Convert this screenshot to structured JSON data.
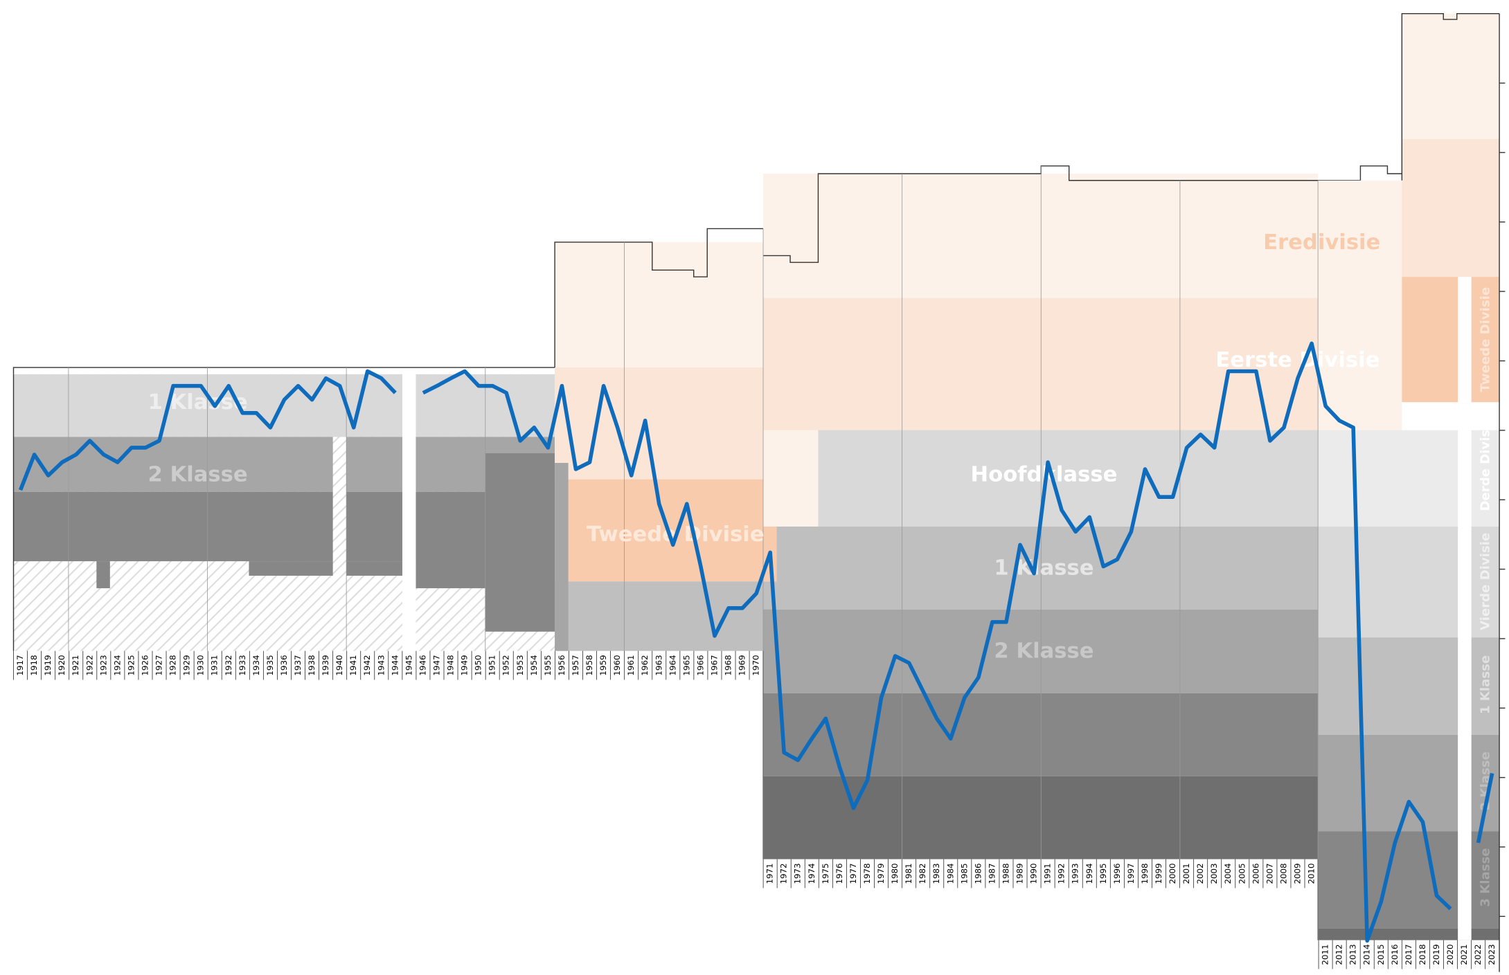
{
  "chart_data": {
    "type": "line",
    "color": "#0f6cbd",
    "invert": true,
    "x": [
      1917,
      1918,
      1919,
      1920,
      1921,
      1922,
      1923,
      1924,
      1925,
      1926,
      1927,
      1928,
      1929,
      1930,
      1931,
      1932,
      1933,
      1934,
      1935,
      1936,
      1937,
      1938,
      1939,
      1940,
      1941,
      1942,
      1943,
      1944,
      1945,
      1946,
      1947,
      1948,
      1949,
      1950,
      1951,
      1952,
      1953,
      1954,
      1955,
      1956,
      1957,
      1958,
      1959,
      1960,
      1961,
      1962,
      1963,
      1964,
      1965,
      1966,
      1967,
      1968,
      1969,
      1970,
      1971,
      1972,
      1973,
      1974,
      1975,
      1976,
      1977,
      1978,
      1979,
      1980,
      1981,
      1982,
      1983,
      1984,
      1985,
      1986,
      1987,
      1988,
      1989,
      1990,
      1991,
      1992,
      1993,
      1994,
      1995,
      1996,
      1997,
      1998,
      1999,
      2000,
      2001,
      2002,
      2003,
      2004,
      2005,
      2006,
      2007,
      2008,
      2009,
      2010,
      2011,
      2012,
      2013,
      2014,
      2015,
      2016,
      2017,
      2018,
      2019,
      2020,
      2021,
      2022,
      2023
    ],
    "values": [
      68.6,
      63.5,
      66.5,
      64.6,
      63.5,
      61.5,
      63.5,
      64.6,
      62.5,
      62.5,
      61.5,
      53.6,
      53.6,
      53.6,
      56.5,
      53.6,
      57.5,
      57.5,
      59.6,
      55.6,
      53.6,
      55.6,
      52.5,
      53.6,
      59.6,
      51.5,
      52.5,
      54.6,
      null,
      54.6,
      53.6,
      52.5,
      51.5,
      53.6,
      53.6,
      54.6,
      61.5,
      59.6,
      62.5,
      53.6,
      65.6,
      64.6,
      53.6,
      59.6,
      66.5,
      58.6,
      70.6,
      76.5,
      70.6,
      79.6,
      89.6,
      85.6,
      85.6,
      83.5,
      77.6,
      106.4,
      107.5,
      104.4,
      101.5,
      108.5,
      114.4,
      110.4,
      98.5,
      92.5,
      93.5,
      97.5,
      101.5,
      104.4,
      98.5,
      95.6,
      87.6,
      87.6,
      76.5,
      80.6,
      64.6,
      71.5,
      74.6,
      72.5,
      79.6,
      78.6,
      74.6,
      65.6,
      69.6,
      69.6,
      62.5,
      60.6,
      62.5,
      51.5,
      51.5,
      51.5,
      61.5,
      59.6,
      52.5,
      47.5,
      56.5,
      58.6,
      59.6,
      133.5,
      127.9,
      119.4,
      113.5,
      116.4,
      127,
      128.9,
      null,
      119.4,
      109.4
    ],
    "ylim": [
      0,
      138
    ],
    "yticks": [
      10,
      20,
      30,
      40,
      50,
      60,
      70,
      80,
      90,
      100,
      110,
      120,
      130
    ],
    "annotations": [
      "1 Klasse",
      "2 Klasse",
      "Tweede Divisie",
      "Eredivisie",
      "Eerste Divisie",
      "Hoofdklasse",
      "1 Klasse",
      "2 Klasse",
      "Tweede Divisie",
      "Derde Divisie",
      "Vierde Divisie",
      "1 Klasse",
      "2 Klasse",
      "3 Klasse"
    ]
  }
}
